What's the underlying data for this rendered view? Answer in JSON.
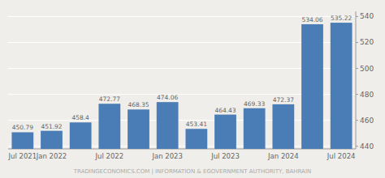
{
  "chart_data": {
    "type": "bar",
    "categories": [
      "Jul 2021",
      "Jan 2022",
      null,
      "Jul 2022",
      null,
      "Jan 2023",
      null,
      "Jul 2023",
      null,
      "Jan 2024",
      null,
      "Jul 2024"
    ],
    "values": [
      450.79,
      451.92,
      458.4,
      472.77,
      468.35,
      474.06,
      453.41,
      464.43,
      469.33,
      472.37,
      534.06,
      535.22
    ],
    "color": "#4a7db5",
    "ylim": [
      438,
      544
    ],
    "yticks": [
      440,
      460,
      480,
      500,
      520,
      540
    ],
    "grid": true,
    "data_labels": true,
    "annotations": [
      "TRADINGECONOMICS.COM | INFORMATION & EGOVERNMENT AUTHORITY, BAHRAIN"
    ]
  }
}
